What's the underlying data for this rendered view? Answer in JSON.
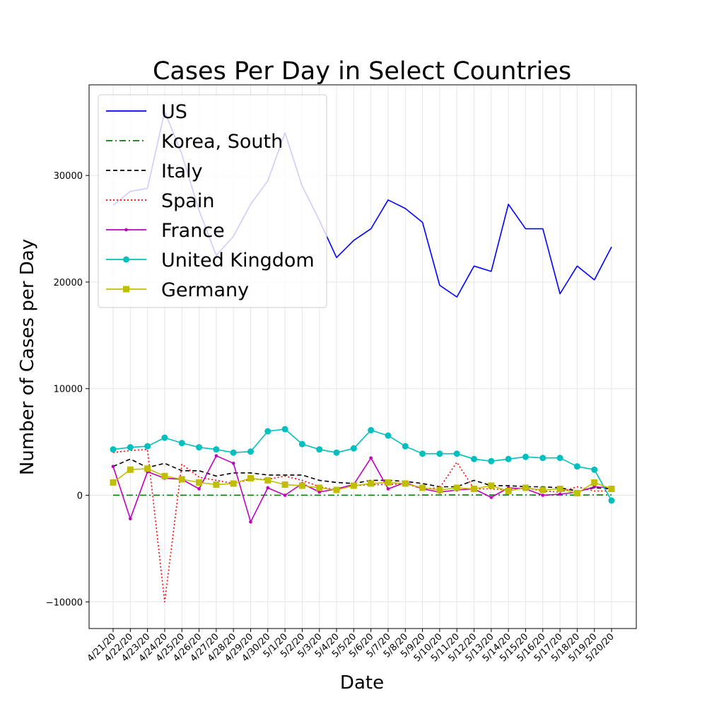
{
  "chart_data": {
    "type": "line",
    "title": "Cases Per Day in Select Countries",
    "xlabel": "Date",
    "ylabel": "Number of Cases per Day",
    "ylim": [
      -12500,
      38500
    ],
    "yticks": [
      -10000,
      0,
      10000,
      20000,
      30000
    ],
    "grid": true,
    "legend_position": "top-left",
    "categories": [
      "4/21/20",
      "4/22/20",
      "4/23/20",
      "4/24/20",
      "4/25/20",
      "4/26/20",
      "4/27/20",
      "4/28/20",
      "4/29/20",
      "4/30/20",
      "5/1/20",
      "5/2/20",
      "5/3/20",
      "5/4/20",
      "5/5/20",
      "5/6/20",
      "5/7/20",
      "5/8/20",
      "5/9/20",
      "5/10/20",
      "5/11/20",
      "5/12/20",
      "5/13/20",
      "5/14/20",
      "5/15/20",
      "5/16/20",
      "5/17/20",
      "5/18/20",
      "5/19/20",
      "5/20/20"
    ],
    "series": [
      {
        "name": "US",
        "color": "#0000ff",
        "style": "solid",
        "marker": "none",
        "values": [
          27200,
          28500,
          28800,
          36000,
          32000,
          26700,
          22500,
          24300,
          27300,
          29500,
          34000,
          29000,
          25800,
          22300,
          23900,
          25000,
          27700,
          26900,
          25600,
          19700,
          18600,
          21500,
          21000,
          27300,
          25000,
          25000,
          18900,
          21500,
          20200,
          23300
        ]
      },
      {
        "name": "Korea, South",
        "color": "#008000",
        "style": "dashdot",
        "marker": "none",
        "values": [
          10,
          10,
          10,
          10,
          10,
          10,
          10,
          10,
          10,
          10,
          10,
          10,
          10,
          10,
          10,
          10,
          10,
          10,
          20,
          30,
          30,
          30,
          30,
          30,
          30,
          20,
          20,
          20,
          30,
          30
        ]
      },
      {
        "name": "Italy",
        "color": "#000000",
        "style": "dashed",
        "marker": "none",
        "values": [
          2700,
          3400,
          2600,
          3000,
          2300,
          2300,
          1800,
          2100,
          2100,
          1900,
          1900,
          1900,
          1400,
          1200,
          1100,
          1400,
          1400,
          1300,
          1100,
          800,
          800,
          1400,
          900,
          900,
          800,
          800,
          700,
          400,
          700,
          600
        ]
      },
      {
        "name": "Spain",
        "color": "#ff0000",
        "style": "dotted",
        "marker": "none",
        "values": [
          4000,
          4200,
          4300,
          -10000,
          2900,
          1700,
          1400,
          1100,
          1500,
          1500,
          1800,
          1400,
          800,
          500,
          900,
          1000,
          1000,
          1100,
          600,
          700,
          3100,
          600,
          600,
          500,
          700,
          400,
          300,
          800,
          400,
          400
        ]
      },
      {
        "name": "France",
        "color": "#bf00bf",
        "style": "solid",
        "marker": "dot",
        "values": [
          2700,
          -2200,
          2200,
          1600,
          1500,
          600,
          3700,
          3000,
          -2500,
          700,
          0,
          1100,
          300,
          600,
          1000,
          3500,
          600,
          1200,
          600,
          300,
          500,
          600,
          -200,
          700,
          600,
          0,
          100,
          300,
          800,
          700
        ]
      },
      {
        "name": "United Kingdom",
        "color": "#00bfbf",
        "style": "solid",
        "marker": "circle",
        "values": [
          4300,
          4500,
          4600,
          5400,
          4900,
          4500,
          4300,
          4000,
          4100,
          6000,
          6200,
          4800,
          4300,
          4000,
          4400,
          6100,
          5600,
          4600,
          3900,
          3900,
          3900,
          3400,
          3200,
          3400,
          3600,
          3500,
          3500,
          2700,
          2400,
          -500
        ]
      },
      {
        "name": "Germany",
        "color": "#bfbf00",
        "style": "solid",
        "marker": "square",
        "values": [
          1200,
          2400,
          2500,
          1800,
          1500,
          1200,
          1000,
          1100,
          1600,
          1400,
          1000,
          900,
          700,
          500,
          900,
          1100,
          1200,
          1100,
          700,
          500,
          700,
          600,
          900,
          400,
          700,
          500,
          600,
          200,
          1200,
          600
        ]
      }
    ]
  }
}
